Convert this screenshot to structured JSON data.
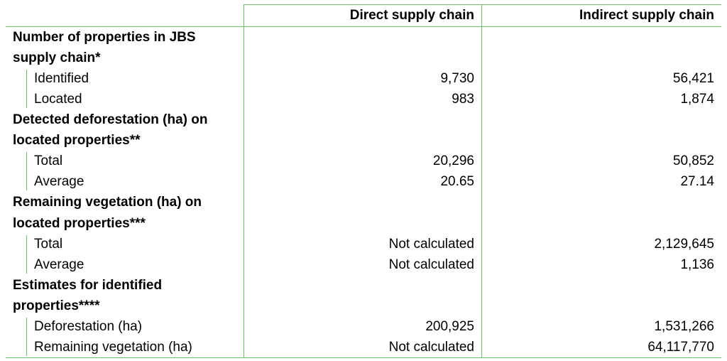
{
  "header": {
    "direct": "Direct supply chain",
    "indirect": "Indirect supply chain"
  },
  "sections": [
    {
      "title": [
        "Number of properties in JBS",
        "supply chain*"
      ],
      "rows": [
        {
          "label": "Identified",
          "direct": "9,730",
          "indirect": "56,421"
        },
        {
          "label": "Located",
          "direct": "983",
          "indirect": "1,874"
        }
      ]
    },
    {
      "title": [
        "Detected deforestation (ha) on",
        "located properties**"
      ],
      "rows": [
        {
          "label": "Total",
          "direct": "20,296",
          "indirect": "50,852"
        },
        {
          "label": "Average",
          "direct": "20.65",
          "indirect": "27.14"
        }
      ]
    },
    {
      "title": [
        "Remaining vegetation (ha) on",
        "located properties***"
      ],
      "rows": [
        {
          "label": "Total",
          "direct": "Not calculated",
          "indirect": "2,129,645"
        },
        {
          "label": "Average",
          "direct": "Not calculated",
          "indirect": "1,136"
        }
      ]
    },
    {
      "title": [
        "Estimates for identified",
        "properties****"
      ],
      "rows": [
        {
          "label": "Deforestation (ha)",
          "direct": "200,925",
          "indirect": "1,531,266"
        },
        {
          "label": "Remaining vegetation (ha)",
          "direct": "Not calculated",
          "indirect": "64,117,770"
        }
      ]
    }
  ]
}
